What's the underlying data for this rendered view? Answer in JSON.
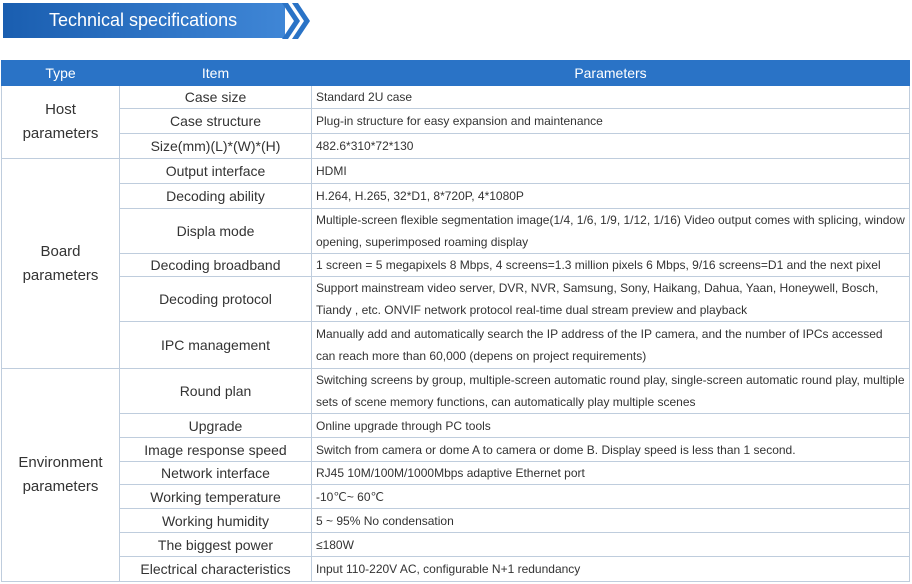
{
  "header": {
    "title": "Technical specifications"
  },
  "table": {
    "columns": [
      "Type",
      "Item",
      "Parameters"
    ],
    "groups": [
      {
        "type": "Host parameters",
        "rows": [
          [
            "Case size",
            "Standard 2U case"
          ],
          [
            "Case structure",
            "Plug-in structure for easy expansion and maintenance"
          ],
          [
            "Size(mm)(L)*(W)*(H)",
            "482.6*310*72*130"
          ]
        ]
      },
      {
        "type": "Board parameters",
        "rows": [
          [
            "Output interface",
            "HDMI"
          ],
          [
            "Decoding ability",
            "H.264, H.265, 32*D1, 8*720P, 4*1080P"
          ],
          [
            "Displa mode",
            "Multiple-screen flexible segmentation image(1/4, 1/6, 1/9, 1/12, 1/16) Video output comes with splicing, window opening, superimposed roaming display"
          ],
          [
            "Decoding broadband",
            "1 screen = 5 megapixels 8 Mbps, 4 screens=1.3 million pixels 6 Mbps, 9/16 screens=D1 and the next pixel"
          ],
          [
            "Decoding protocol",
            "Support mainstream video server, DVR, NVR, Samsung, Sony, Haikang, Dahua, Yaan, Honeywell, Bosch, Tiandy , etc. ONVIF network protocol real-time dual stream preview and playback"
          ],
          [
            "IPC management",
            "Manually add and automatically search the IP address of the IP camera, and the number of IPCs accessed can reach more than 60,000 (depens on project requirements)"
          ]
        ]
      },
      {
        "type": "Environment parameters",
        "rows": [
          [
            "Round plan",
            "Switching screens by group, multiple-screen automatic round play, single-screen automatic round play, multiple sets of scene memory functions, can automatically play multiple scenes"
          ],
          [
            "Upgrade",
            "Online upgrade through PC tools"
          ],
          [
            "Image response speed",
            "Switch from camera or dome A to camera or dome B. Display speed is less than 1 second."
          ],
          [
            "Network interface",
            "RJ45 10M/100M/1000Mbps adaptive Ethernet port"
          ],
          [
            "Working temperature",
            "-10℃~ 60℃"
          ],
          [
            "Working humidity",
            "5 ~ 95% No condensation"
          ],
          [
            "The biggest power",
            "≤180W"
          ],
          [
            "Electrical characteristics",
            "Input 110-220V AC, configurable N+1 redundancy"
          ]
        ]
      }
    ]
  }
}
